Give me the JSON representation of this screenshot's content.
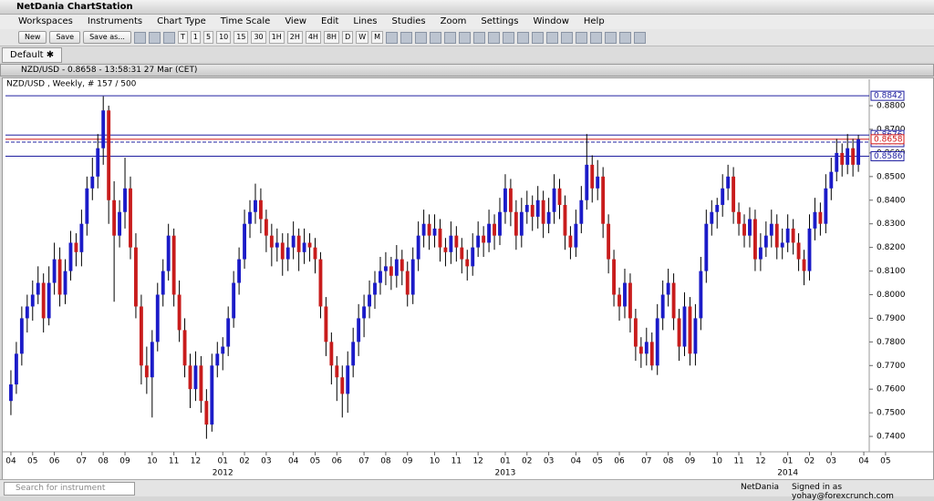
{
  "app": {
    "title": "NetDania ChartStation",
    "menu": [
      "Workspaces",
      "Instruments",
      "Chart Type",
      "Time Scale",
      "View",
      "Edit",
      "Lines",
      "Studies",
      "Zoom",
      "Settings",
      "Window",
      "Help"
    ],
    "buttons": [
      "New",
      "Save",
      "Save as..."
    ],
    "timeframes": [
      "T",
      "1",
      "5",
      "10",
      "15",
      "30",
      "1H",
      "2H",
      "4H",
      "8H",
      "D",
      "W",
      "M"
    ],
    "tab": "Default",
    "panel_title": "NZD/USD - 0.8658 - 13:58:31  27 Mar (CET)",
    "search": "Search for instrument",
    "brand": "NetDania",
    "signed_in": "Signed in as yohay@forexcrunch.com"
  },
  "chart_data": {
    "type": "candlestick",
    "subtitle": "NZD/USD , Weekly, # 157 / 500",
    "up_color": "#1b1bc8",
    "down_color": "#c81c1c",
    "wick_color": "#000000",
    "ylim": [
      0.7354,
      0.8912
    ],
    "yticks": [
      {
        "value": 0.74,
        "label": "0.7400"
      },
      {
        "value": 0.75,
        "label": "0.7500"
      },
      {
        "value": 0.76,
        "label": "0.7600"
      },
      {
        "value": 0.77,
        "label": "0.7700"
      },
      {
        "value": 0.78,
        "label": "0.7800"
      },
      {
        "value": 0.79,
        "label": "0.7900"
      },
      {
        "value": 0.8,
        "label": "0.8000"
      },
      {
        "value": 0.81,
        "label": "0.8100"
      },
      {
        "value": 0.82,
        "label": "0.8200"
      },
      {
        "value": 0.83,
        "label": "0.8300"
      },
      {
        "value": 0.84,
        "label": "0.8400"
      },
      {
        "value": 0.85,
        "label": "0.8500"
      },
      {
        "value": 0.86,
        "label": "0.8600"
      },
      {
        "value": 0.87,
        "label": "0.8700"
      },
      {
        "value": 0.88,
        "label": "0.8800"
      }
    ],
    "xlim": [
      -1,
      158
    ],
    "xticks": [
      {
        "value": 0,
        "label": "04"
      },
      {
        "value": 4,
        "label": "05"
      },
      {
        "value": 8,
        "label": "06"
      },
      {
        "value": 13,
        "label": "07"
      },
      {
        "value": 17,
        "label": "08"
      },
      {
        "value": 21,
        "label": "09"
      },
      {
        "value": 26,
        "label": "10"
      },
      {
        "value": 30,
        "label": "11"
      },
      {
        "value": 34,
        "label": "12"
      },
      {
        "value": 39,
        "label": "01"
      },
      {
        "value": 43,
        "label": "02"
      },
      {
        "value": 47,
        "label": "03"
      },
      {
        "value": 52,
        "label": "04"
      },
      {
        "value": 56,
        "label": "05"
      },
      {
        "value": 60,
        "label": "06"
      },
      {
        "value": 65,
        "label": "07"
      },
      {
        "value": 69,
        "label": "08"
      },
      {
        "value": 73,
        "label": "09"
      },
      {
        "value": 78,
        "label": "10"
      },
      {
        "value": 82,
        "label": "11"
      },
      {
        "value": 86,
        "label": "12"
      },
      {
        "value": 91,
        "label": "01"
      },
      {
        "value": 95,
        "label": "02"
      },
      {
        "value": 99,
        "label": "03"
      },
      {
        "value": 104,
        "label": "04"
      },
      {
        "value": 108,
        "label": "05"
      },
      {
        "value": 112,
        "label": "06"
      },
      {
        "value": 117,
        "label": "07"
      },
      {
        "value": 121,
        "label": "08"
      },
      {
        "value": 125,
        "label": "09"
      },
      {
        "value": 130,
        "label": "10"
      },
      {
        "value": 134,
        "label": "11"
      },
      {
        "value": 138,
        "label": "12"
      },
      {
        "value": 143,
        "label": "01"
      },
      {
        "value": 147,
        "label": "02"
      },
      {
        "value": 151,
        "label": "03"
      },
      {
        "value": 157,
        "label": "04"
      },
      {
        "value": 161,
        "label": "05"
      }
    ],
    "year_ticks": [
      {
        "value": 39,
        "label": "2012"
      },
      {
        "value": 91,
        "label": "2013"
      },
      {
        "value": 143,
        "label": "2014"
      }
    ],
    "levels": [
      0.8842,
      0.8676,
      0.8586
    ],
    "dashed_levels": [
      0.8646
    ],
    "current": 0.8658,
    "current_color": "#d01010",
    "candles": [
      [
        0.755,
        0.768,
        0.749,
        0.762
      ],
      [
        0.762,
        0.78,
        0.758,
        0.775
      ],
      [
        0.775,
        0.795,
        0.77,
        0.79
      ],
      [
        0.79,
        0.8,
        0.784,
        0.795
      ],
      [
        0.795,
        0.806,
        0.789,
        0.8
      ],
      [
        0.8,
        0.812,
        0.796,
        0.805
      ],
      [
        0.805,
        0.809,
        0.784,
        0.79
      ],
      [
        0.79,
        0.812,
        0.787,
        0.805
      ],
      [
        0.805,
        0.822,
        0.8,
        0.815
      ],
      [
        0.815,
        0.82,
        0.795,
        0.8
      ],
      [
        0.8,
        0.815,
        0.796,
        0.81
      ],
      [
        0.81,
        0.827,
        0.806,
        0.822
      ],
      [
        0.822,
        0.826,
        0.812,
        0.818
      ],
      [
        0.818,
        0.836,
        0.812,
        0.83
      ],
      [
        0.83,
        0.85,
        0.825,
        0.845
      ],
      [
        0.845,
        0.858,
        0.84,
        0.85
      ],
      [
        0.85,
        0.868,
        0.845,
        0.862
      ],
      [
        0.862,
        0.884,
        0.855,
        0.878
      ],
      [
        0.878,
        0.88,
        0.83,
        0.84
      ],
      [
        0.84,
        0.848,
        0.797,
        0.825
      ],
      [
        0.825,
        0.84,
        0.82,
        0.835
      ],
      [
        0.835,
        0.858,
        0.828,
        0.845
      ],
      [
        0.845,
        0.85,
        0.815,
        0.82
      ],
      [
        0.82,
        0.826,
        0.79,
        0.795
      ],
      [
        0.795,
        0.8,
        0.762,
        0.77
      ],
      [
        0.77,
        0.778,
        0.758,
        0.765
      ],
      [
        0.765,
        0.785,
        0.748,
        0.78
      ],
      [
        0.78,
        0.805,
        0.776,
        0.8
      ],
      [
        0.8,
        0.815,
        0.795,
        0.81
      ],
      [
        0.81,
        0.83,
        0.806,
        0.825
      ],
      [
        0.825,
        0.828,
        0.795,
        0.8
      ],
      [
        0.8,
        0.806,
        0.78,
        0.785
      ],
      [
        0.785,
        0.79,
        0.765,
        0.77
      ],
      [
        0.77,
        0.775,
        0.752,
        0.76
      ],
      [
        0.76,
        0.776,
        0.755,
        0.77
      ],
      [
        0.77,
        0.774,
        0.75,
        0.755
      ],
      [
        0.755,
        0.76,
        0.739,
        0.745
      ],
      [
        0.745,
        0.775,
        0.742,
        0.77
      ],
      [
        0.77,
        0.78,
        0.765,
        0.775
      ],
      [
        0.775,
        0.782,
        0.768,
        0.778
      ],
      [
        0.778,
        0.795,
        0.774,
        0.79
      ],
      [
        0.79,
        0.81,
        0.786,
        0.805
      ],
      [
        0.805,
        0.82,
        0.8,
        0.815
      ],
      [
        0.815,
        0.836,
        0.811,
        0.83
      ],
      [
        0.83,
        0.84,
        0.824,
        0.835
      ],
      [
        0.835,
        0.847,
        0.83,
        0.84
      ],
      [
        0.84,
        0.845,
        0.826,
        0.832
      ],
      [
        0.832,
        0.836,
        0.818,
        0.825
      ],
      [
        0.825,
        0.83,
        0.812,
        0.82
      ],
      [
        0.82,
        0.828,
        0.814,
        0.822
      ],
      [
        0.822,
        0.826,
        0.808,
        0.815
      ],
      [
        0.815,
        0.826,
        0.81,
        0.82
      ],
      [
        0.82,
        0.831,
        0.815,
        0.825
      ],
      [
        0.825,
        0.828,
        0.81,
        0.818
      ],
      [
        0.818,
        0.828,
        0.813,
        0.822
      ],
      [
        0.822,
        0.826,
        0.814,
        0.82
      ],
      [
        0.82,
        0.824,
        0.809,
        0.815
      ],
      [
        0.815,
        0.818,
        0.79,
        0.795
      ],
      [
        0.795,
        0.799,
        0.774,
        0.78
      ],
      [
        0.78,
        0.784,
        0.762,
        0.77
      ],
      [
        0.77,
        0.774,
        0.755,
        0.765
      ],
      [
        0.765,
        0.77,
        0.748,
        0.758
      ],
      [
        0.758,
        0.776,
        0.75,
        0.77
      ],
      [
        0.77,
        0.786,
        0.765,
        0.78
      ],
      [
        0.78,
        0.796,
        0.774,
        0.79
      ],
      [
        0.79,
        0.8,
        0.782,
        0.795
      ],
      [
        0.795,
        0.806,
        0.79,
        0.8
      ],
      [
        0.8,
        0.81,
        0.794,
        0.805
      ],
      [
        0.805,
        0.816,
        0.8,
        0.81
      ],
      [
        0.81,
        0.818,
        0.804,
        0.812
      ],
      [
        0.812,
        0.816,
        0.802,
        0.808
      ],
      [
        0.808,
        0.821,
        0.803,
        0.815
      ],
      [
        0.815,
        0.819,
        0.804,
        0.81
      ],
      [
        0.81,
        0.814,
        0.795,
        0.8
      ],
      [
        0.8,
        0.82,
        0.796,
        0.815
      ],
      [
        0.815,
        0.831,
        0.81,
        0.825
      ],
      [
        0.825,
        0.836,
        0.82,
        0.83
      ],
      [
        0.83,
        0.834,
        0.819,
        0.825
      ],
      [
        0.825,
        0.834,
        0.82,
        0.828
      ],
      [
        0.828,
        0.832,
        0.814,
        0.82
      ],
      [
        0.82,
        0.824,
        0.812,
        0.818
      ],
      [
        0.818,
        0.831,
        0.813,
        0.825
      ],
      [
        0.825,
        0.829,
        0.814,
        0.82
      ],
      [
        0.82,
        0.824,
        0.809,
        0.815
      ],
      [
        0.815,
        0.819,
        0.806,
        0.812
      ],
      [
        0.812,
        0.826,
        0.808,
        0.82
      ],
      [
        0.82,
        0.831,
        0.816,
        0.825
      ],
      [
        0.825,
        0.829,
        0.816,
        0.822
      ],
      [
        0.822,
        0.836,
        0.818,
        0.83
      ],
      [
        0.83,
        0.834,
        0.819,
        0.825
      ],
      [
        0.825,
        0.841,
        0.821,
        0.835
      ],
      [
        0.835,
        0.851,
        0.83,
        0.845
      ],
      [
        0.845,
        0.849,
        0.829,
        0.835
      ],
      [
        0.835,
        0.84,
        0.819,
        0.825
      ],
      [
        0.825,
        0.841,
        0.82,
        0.835
      ],
      [
        0.835,
        0.844,
        0.83,
        0.838
      ],
      [
        0.838,
        0.842,
        0.827,
        0.833
      ],
      [
        0.833,
        0.846,
        0.828,
        0.84
      ],
      [
        0.84,
        0.844,
        0.824,
        0.83
      ],
      [
        0.83,
        0.841,
        0.826,
        0.835
      ],
      [
        0.835,
        0.851,
        0.83,
        0.845
      ],
      [
        0.845,
        0.849,
        0.832,
        0.838
      ],
      [
        0.838,
        0.842,
        0.819,
        0.825
      ],
      [
        0.825,
        0.829,
        0.815,
        0.82
      ],
      [
        0.82,
        0.836,
        0.816,
        0.83
      ],
      [
        0.83,
        0.846,
        0.826,
        0.84
      ],
      [
        0.84,
        0.868,
        0.836,
        0.855
      ],
      [
        0.855,
        0.859,
        0.839,
        0.845
      ],
      [
        0.845,
        0.857,
        0.84,
        0.85
      ],
      [
        0.85,
        0.854,
        0.824,
        0.83
      ],
      [
        0.83,
        0.834,
        0.809,
        0.815
      ],
      [
        0.815,
        0.819,
        0.795,
        0.8
      ],
      [
        0.8,
        0.803,
        0.789,
        0.795
      ],
      [
        0.795,
        0.811,
        0.79,
        0.805
      ],
      [
        0.805,
        0.809,
        0.784,
        0.79
      ],
      [
        0.79,
        0.794,
        0.772,
        0.778
      ],
      [
        0.778,
        0.782,
        0.769,
        0.775
      ],
      [
        0.775,
        0.786,
        0.77,
        0.78
      ],
      [
        0.78,
        0.784,
        0.768,
        0.77
      ],
      [
        0.77,
        0.796,
        0.766,
        0.79
      ],
      [
        0.79,
        0.806,
        0.785,
        0.8
      ],
      [
        0.8,
        0.811,
        0.795,
        0.805
      ],
      [
        0.805,
        0.809,
        0.785,
        0.79
      ],
      [
        0.79,
        0.794,
        0.772,
        0.778
      ],
      [
        0.778,
        0.801,
        0.774,
        0.795
      ],
      [
        0.795,
        0.799,
        0.77,
        0.775
      ],
      [
        0.775,
        0.796,
        0.77,
        0.79
      ],
      [
        0.79,
        0.816,
        0.785,
        0.81
      ],
      [
        0.81,
        0.836,
        0.805,
        0.83
      ],
      [
        0.83,
        0.84,
        0.825,
        0.835
      ],
      [
        0.835,
        0.841,
        0.828,
        0.838
      ],
      [
        0.838,
        0.851,
        0.833,
        0.845
      ],
      [
        0.845,
        0.855,
        0.84,
        0.85
      ],
      [
        0.85,
        0.854,
        0.83,
        0.835
      ],
      [
        0.835,
        0.839,
        0.825,
        0.83
      ],
      [
        0.83,
        0.834,
        0.82,
        0.825
      ],
      [
        0.825,
        0.837,
        0.82,
        0.832
      ],
      [
        0.832,
        0.836,
        0.81,
        0.815
      ],
      [
        0.815,
        0.826,
        0.81,
        0.82
      ],
      [
        0.82,
        0.831,
        0.816,
        0.825
      ],
      [
        0.825,
        0.836,
        0.82,
        0.83
      ],
      [
        0.83,
        0.834,
        0.815,
        0.82
      ],
      [
        0.82,
        0.828,
        0.815,
        0.822
      ],
      [
        0.822,
        0.834,
        0.818,
        0.828
      ],
      [
        0.828,
        0.832,
        0.817,
        0.822
      ],
      [
        0.822,
        0.826,
        0.81,
        0.815
      ],
      [
        0.815,
        0.819,
        0.804,
        0.81
      ],
      [
        0.81,
        0.834,
        0.806,
        0.828
      ],
      [
        0.828,
        0.841,
        0.823,
        0.835
      ],
      [
        0.835,
        0.839,
        0.825,
        0.83
      ],
      [
        0.83,
        0.851,
        0.826,
        0.845
      ],
      [
        0.845,
        0.858,
        0.84,
        0.852
      ],
      [
        0.852,
        0.866,
        0.848,
        0.86
      ],
      [
        0.86,
        0.864,
        0.85,
        0.855
      ],
      [
        0.855,
        0.868,
        0.851,
        0.862
      ],
      [
        0.862,
        0.866,
        0.85,
        0.855
      ],
      [
        0.855,
        0.8676,
        0.852,
        0.8658
      ]
    ]
  }
}
